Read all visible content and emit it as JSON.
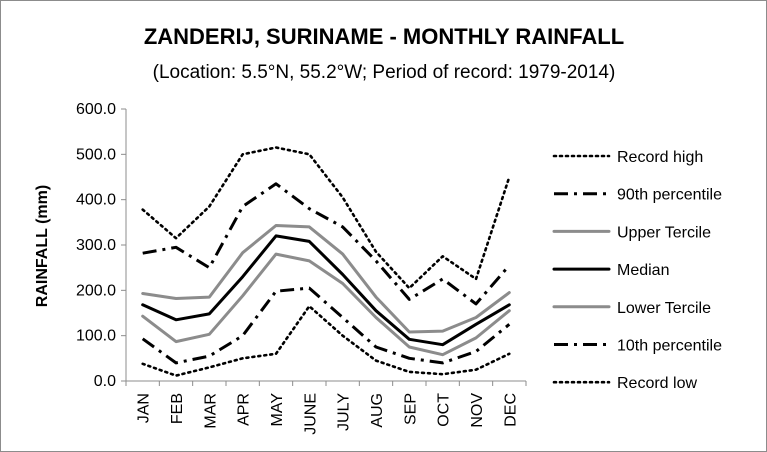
{
  "chart_data": {
    "type": "line",
    "title": "ZANDERIJ, SURINAME - MONTHLY RAINFALL",
    "subtitle": "(Location: 5.5°N, 55.2°W; Period of record: 1979-2014)",
    "xlabel": "",
    "ylabel": "RAINFALL (mm)",
    "ylim": [
      0,
      600
    ],
    "yticks": [
      "0.0",
      "100.0",
      "200.0",
      "300.0",
      "400.0",
      "500.0",
      "600.0"
    ],
    "categories": [
      "JAN",
      "FEB",
      "MAR",
      "APR",
      "MAY",
      "JUNE",
      "JULY",
      "AUG",
      "SEP",
      "OCT",
      "NOV",
      "DEC"
    ],
    "legend_position": "right",
    "grid": false,
    "series": [
      {
        "name": "Record high",
        "style": "dotted",
        "color": "#000000",
        "values": [
          378,
          315,
          385,
          500,
          515,
          500,
          405,
          285,
          205,
          275,
          225,
          450
        ]
      },
      {
        "name": "90th percentile",
        "style": "dashdot",
        "color": "#000000",
        "values": [
          282,
          295,
          250,
          385,
          435,
          380,
          340,
          265,
          180,
          225,
          170,
          255
        ]
      },
      {
        "name": "Upper Tercile",
        "style": "solid",
        "color": "#8c8c8c",
        "values": [
          193,
          182,
          185,
          283,
          343,
          340,
          280,
          185,
          108,
          110,
          140,
          195
        ]
      },
      {
        "name": "Median",
        "style": "solid",
        "color": "#000000",
        "values": [
          168,
          135,
          148,
          230,
          320,
          308,
          235,
          155,
          92,
          80,
          125,
          168
        ]
      },
      {
        "name": "Lower Tercile",
        "style": "solid",
        "color": "#8c8c8c",
        "values": [
          143,
          87,
          103,
          188,
          280,
          265,
          215,
          140,
          75,
          58,
          95,
          155
        ]
      },
      {
        "name": "10th percentile",
        "style": "dashdot",
        "color": "#000000",
        "values": [
          93,
          40,
          55,
          100,
          198,
          205,
          140,
          75,
          50,
          40,
          65,
          125
        ]
      },
      {
        "name": "Record low",
        "style": "dotted",
        "color": "#000000",
        "values": [
          38,
          12,
          30,
          50,
          60,
          165,
          100,
          45,
          20,
          15,
          25,
          60
        ]
      }
    ]
  }
}
